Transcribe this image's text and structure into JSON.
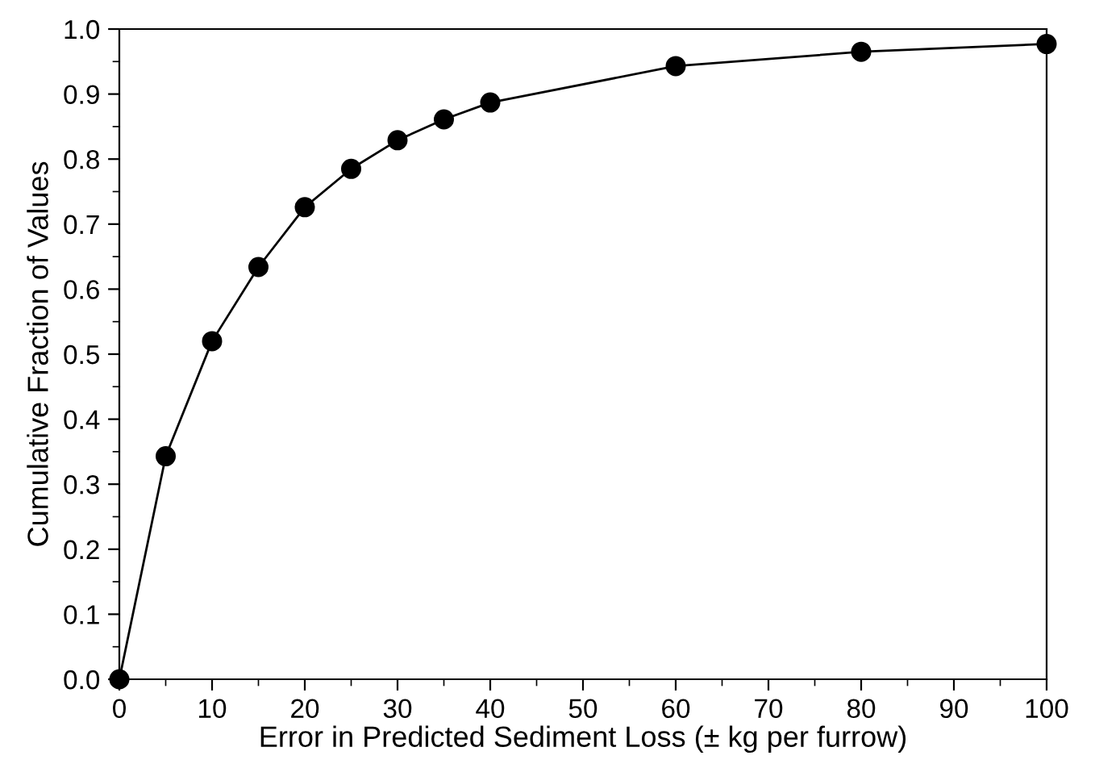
{
  "chart_data": {
    "type": "line",
    "xlabel": "Error in Predicted Sediment Loss (± kg per furrow)",
    "ylabel": "Cumulative Fraction of Values",
    "x": [
      0,
      5,
      10,
      15,
      20,
      25,
      30,
      35,
      40,
      60,
      80,
      100
    ],
    "series": [
      {
        "color": "#000000",
        "values": [
          0.0,
          0.343,
          0.52,
          0.634,
          0.726,
          0.785,
          0.829,
          0.861,
          0.887,
          0.943,
          0.965,
          0.977
        ]
      }
    ],
    "marker": "circle",
    "line_style": "solid",
    "grid": false,
    "legend": false,
    "xlim": [
      0,
      100
    ],
    "xticks": [
      0,
      10,
      20,
      30,
      40,
      50,
      60,
      70,
      80,
      90,
      100
    ],
    "ylim": [
      0.0,
      1.0
    ],
    "yticks": [
      {
        "value": 0.0,
        "label": "0.0"
      },
      0.1,
      0.2,
      0.3,
      0.4,
      0.5,
      0.6,
      0.7,
      0.8,
      0.9,
      {
        "value": 1.0,
        "label": "1.0"
      }
    ]
  }
}
